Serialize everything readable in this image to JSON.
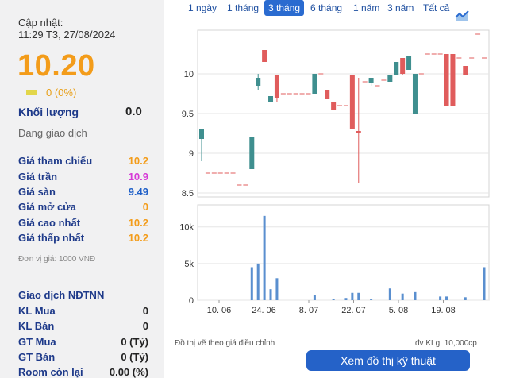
{
  "summary": {
    "update_label": "Cập nhật:",
    "update_time": "11:29 T3, 27/08/2024",
    "price": "10.20",
    "change": "0 (0%)",
    "volume_label": "Khối lượng",
    "volume_value": "0.0",
    "status": "Đang giao dịch"
  },
  "price_rows": [
    {
      "label": "Giá tham chiếu",
      "value": "10.2",
      "color": "#f39c1a"
    },
    {
      "label": "Giá trần",
      "value": "10.9",
      "color": "#d63ad6"
    },
    {
      "label": "Giá sàn",
      "value": "9.49",
      "color": "#1e5fc8"
    },
    {
      "label": "Giá mở cửa",
      "value": "0",
      "color": "#f39c1a"
    },
    {
      "label": "Giá cao nhất",
      "value": "10.2",
      "color": "#f39c1a"
    },
    {
      "label": "Giá thấp nhất",
      "value": "10.2",
      "color": "#f39c1a"
    }
  ],
  "unit_note": "Đơn vị giá: 1000 VNĐ",
  "foreign": {
    "title": "Giao dịch NĐTNN",
    "rows": [
      {
        "label": "KL Mua",
        "value": "0"
      },
      {
        "label": "KL Bán",
        "value": "0"
      },
      {
        "label": "GT Mua",
        "value": "0 (Tỷ)"
      },
      {
        "label": "GT Bán",
        "value": "0 (Tỷ)"
      },
      {
        "label": "Room còn lại",
        "value": "0.00 (%)"
      }
    ]
  },
  "tabs": [
    "1 ngày",
    "1 tháng",
    "3 tháng",
    "6 tháng",
    "1 năm",
    "3 năm",
    "Tất cả"
  ],
  "active_tab": "3 tháng",
  "chart_icon": "line-chart-icon",
  "footer": {
    "note": "Đồ thị vẽ theo giá điều chỉnh",
    "volume_unit": "đv KLg: 10,000cp",
    "button": "Xem đồ thị kỹ thuật"
  },
  "chart_data": {
    "type": "candlestick",
    "price_axis": {
      "ticks": [
        "10",
        "9.5",
        "9",
        "8.5"
      ],
      "range": [
        8.45,
        10.55
      ]
    },
    "volume_axis": {
      "ticks": [
        "10k",
        "5k",
        "0"
      ],
      "range": [
        0,
        13000
      ]
    },
    "x_ticks": [
      "10. 06",
      "24. 06",
      "8. 07",
      "22. 07",
      "5. 08",
      "19. 08"
    ],
    "colors": {
      "up": "#3f8f8f",
      "down": "#e05c5c",
      "flat": "#e05c5c",
      "volume": "#5a8fcf"
    },
    "candles": [
      {
        "d": 0,
        "o": 9.18,
        "h": 9.3,
        "l": 8.9,
        "c": 9.3
      },
      {
        "d": 1,
        "o": 8.75,
        "h": 8.75,
        "l": 8.75,
        "c": 8.75
      },
      {
        "d": 2,
        "o": 8.75,
        "h": 8.75,
        "l": 8.75,
        "c": 8.75
      },
      {
        "d": 3,
        "o": 8.75,
        "h": 8.75,
        "l": 8.75,
        "c": 8.75
      },
      {
        "d": 4,
        "o": 8.75,
        "h": 8.75,
        "l": 8.75,
        "c": 8.75
      },
      {
        "d": 5,
        "o": 8.75,
        "h": 8.75,
        "l": 8.75,
        "c": 8.75
      },
      {
        "d": 6,
        "o": 8.6,
        "h": 8.6,
        "l": 8.6,
        "c": 8.6
      },
      {
        "d": 7,
        "o": 8.6,
        "h": 8.6,
        "l": 8.6,
        "c": 8.6
      },
      {
        "d": 8,
        "o": 8.8,
        "h": 9.2,
        "l": 8.8,
        "c": 9.2
      },
      {
        "d": 9,
        "o": 9.85,
        "h": 10.0,
        "l": 9.8,
        "c": 9.95
      },
      {
        "d": 10,
        "o": 10.3,
        "h": 10.3,
        "l": 10.15,
        "c": 10.15
      },
      {
        "d": 11,
        "o": 9.65,
        "h": 9.72,
        "l": 9.65,
        "c": 9.72
      },
      {
        "d": 12,
        "o": 9.98,
        "h": 9.98,
        "l": 9.65,
        "c": 9.7
      },
      {
        "d": 13,
        "o": 9.75,
        "h": 9.75,
        "l": 9.75,
        "c": 9.75
      },
      {
        "d": 14,
        "o": 9.75,
        "h": 9.75,
        "l": 9.75,
        "c": 9.75
      },
      {
        "d": 15,
        "o": 9.75,
        "h": 9.75,
        "l": 9.75,
        "c": 9.75
      },
      {
        "d": 16,
        "o": 9.75,
        "h": 9.75,
        "l": 9.75,
        "c": 9.75
      },
      {
        "d": 17,
        "o": 9.75,
        "h": 9.75,
        "l": 9.75,
        "c": 9.75
      },
      {
        "d": 18,
        "o": 9.75,
        "h": 10.0,
        "l": 9.75,
        "c": 10.0
      },
      {
        "d": 19,
        "o": 10.0,
        "h": 10.0,
        "l": 10.0,
        "c": 10.0
      },
      {
        "d": 20,
        "o": 9.8,
        "h": 9.8,
        "l": 9.68,
        "c": 9.68
      },
      {
        "d": 21,
        "o": 9.65,
        "h": 9.65,
        "l": 9.55,
        "c": 9.55
      },
      {
        "d": 22,
        "o": 9.6,
        "h": 9.6,
        "l": 9.6,
        "c": 9.6
      },
      {
        "d": 23,
        "o": 9.6,
        "h": 9.6,
        "l": 9.6,
        "c": 9.6
      },
      {
        "d": 24,
        "o": 9.98,
        "h": 9.98,
        "l": 9.3,
        "c": 9.3
      },
      {
        "d": 25,
        "o": 9.28,
        "h": 9.95,
        "l": 8.62,
        "c": 9.25
      },
      {
        "d": 26,
        "o": 9.9,
        "h": 9.9,
        "l": 9.9,
        "c": 9.9
      },
      {
        "d": 27,
        "o": 9.88,
        "h": 9.95,
        "l": 9.85,
        "c": 9.95
      },
      {
        "d": 28,
        "o": 9.85,
        "h": 9.85,
        "l": 9.85,
        "c": 9.85
      },
      {
        "d": 29,
        "o": 9.92,
        "h": 9.92,
        "l": 9.92,
        "c": 9.92
      },
      {
        "d": 30,
        "o": 9.9,
        "h": 9.98,
        "l": 9.9,
        "c": 9.98
      },
      {
        "d": 31,
        "o": 9.98,
        "h": 10.15,
        "l": 9.98,
        "c": 10.15
      },
      {
        "d": 32,
        "o": 10.2,
        "h": 10.2,
        "l": 9.98,
        "c": 10.0
      },
      {
        "d": 33,
        "o": 10.05,
        "h": 10.22,
        "l": 10.05,
        "c": 10.22
      },
      {
        "d": 34,
        "o": 9.5,
        "h": 10.0,
        "l": 9.5,
        "c": 10.0
      },
      {
        "d": 35,
        "o": 10.0,
        "h": 10.0,
        "l": 10.0,
        "c": 10.0
      },
      {
        "d": 36,
        "o": 10.25,
        "h": 10.25,
        "l": 10.25,
        "c": 10.25
      },
      {
        "d": 37,
        "o": 10.25,
        "h": 10.25,
        "l": 10.25,
        "c": 10.25
      },
      {
        "d": 38,
        "o": 10.25,
        "h": 10.25,
        "l": 10.25,
        "c": 10.25
      },
      {
        "d": 39,
        "o": 10.25,
        "h": 10.25,
        "l": 9.6,
        "c": 9.6
      },
      {
        "d": 40,
        "o": 10.25,
        "h": 10.25,
        "l": 9.6,
        "c": 9.6
      },
      {
        "d": 41,
        "o": 10.2,
        "h": 10.2,
        "l": 10.2,
        "c": 10.2
      },
      {
        "d": 42,
        "o": 10.1,
        "h": 10.1,
        "l": 9.98,
        "c": 9.98
      },
      {
        "d": 43,
        "o": 10.2,
        "h": 10.2,
        "l": 10.2,
        "c": 10.2
      },
      {
        "d": 44,
        "o": 10.5,
        "h": 10.5,
        "l": 10.5,
        "c": 10.5
      },
      {
        "d": 45,
        "o": 10.2,
        "h": 10.2,
        "l": 10.2,
        "c": 10.2
      }
    ],
    "volumes": [
      0,
      0,
      0,
      0,
      0,
      0,
      0,
      0,
      4500,
      5000,
      11500,
      1500,
      3000,
      0,
      0,
      0,
      0,
      0,
      700,
      0,
      0,
      200,
      0,
      300,
      1000,
      1000,
      0,
      100,
      0,
      0,
      1600,
      0,
      900,
      0,
      1100,
      0,
      0,
      0,
      500,
      500,
      0,
      0,
      400,
      0,
      0,
      4500
    ]
  }
}
